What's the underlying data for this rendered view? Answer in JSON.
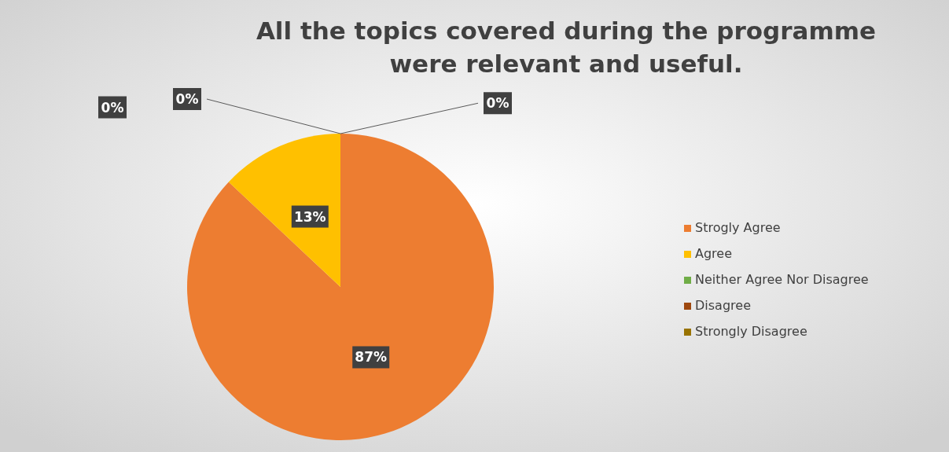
{
  "chart_data": {
    "type": "pie",
    "title": "All the topics covered during the programme were relevant and useful.",
    "categories": [
      "Strogly Agree",
      "Agree",
      "Neither Agree Nor Disagree",
      "Disagree",
      "Strongly Disagree"
    ],
    "values": [
      87,
      13,
      0,
      0,
      0
    ],
    "colors": [
      "#ed7d31",
      "#ffc000",
      "#70ad47",
      "#9e480e",
      "#997300"
    ],
    "value_labels": [
      "87%",
      "13%",
      "0%",
      "0%",
      "0%"
    ],
    "legend": "right"
  }
}
